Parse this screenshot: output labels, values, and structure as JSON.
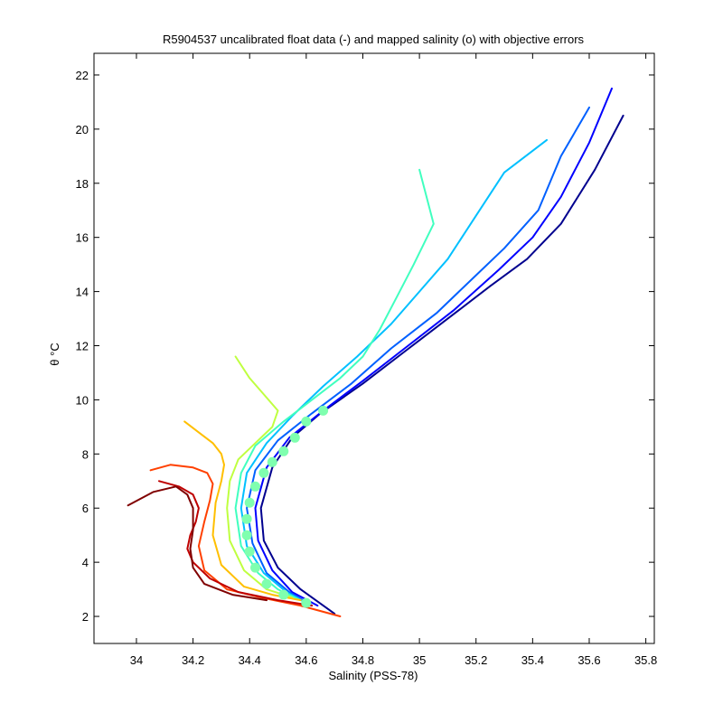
{
  "chart_data": {
    "type": "line",
    "title": "R5904537 uncalibrated float data (-) and mapped salinity (o) with objective errors",
    "xlabel": "Salinity (PSS-78)",
    "ylabel": "θ °C",
    "xlim": [
      33.85,
      35.83
    ],
    "ylim": [
      1.0,
      22.8
    ],
    "x_ticks": [
      34,
      34.2,
      34.4,
      34.6,
      34.8,
      35,
      35.2,
      35.4,
      35.6,
      35.8
    ],
    "x_tick_labels": [
      "34",
      "34.2",
      "34.4",
      "34.6",
      "34.8",
      "35",
      "35.2",
      "35.4",
      "35.6",
      "35.8"
    ],
    "y_ticks": [
      2,
      4,
      6,
      8,
      10,
      12,
      14,
      16,
      18,
      20,
      22
    ],
    "y_tick_labels": [
      "2",
      "4",
      "6",
      "8",
      "10",
      "12",
      "14",
      "16",
      "18",
      "20",
      "22"
    ],
    "grid": false,
    "colormap": "jet",
    "series": [
      {
        "color": "#00008f",
        "x": [
          35.72,
          35.62,
          35.5,
          35.38,
          35.25,
          35.1,
          34.95,
          34.8,
          34.65,
          34.55,
          34.48,
          34.44,
          34.45,
          34.5,
          34.58,
          34.7
        ],
        "y": [
          20.5,
          18.5,
          16.5,
          15.2,
          14.2,
          13.0,
          11.8,
          10.6,
          9.5,
          8.6,
          7.5,
          6.0,
          4.8,
          3.8,
          3.0,
          2.1
        ]
      },
      {
        "color": "#0000ff",
        "x": [
          35.68,
          35.6,
          35.5,
          35.4,
          35.28,
          35.12,
          34.96,
          34.8,
          34.66,
          34.54,
          34.46,
          34.42,
          34.43,
          34.48,
          34.55,
          34.64
        ],
        "y": [
          21.5,
          19.5,
          17.5,
          16.0,
          14.8,
          13.3,
          12.0,
          10.7,
          9.6,
          8.6,
          7.5,
          6.0,
          4.8,
          3.7,
          2.9,
          2.4
        ]
      },
      {
        "color": "#0060ff",
        "x": [
          35.6,
          35.5,
          35.42,
          35.3,
          35.2,
          35.06,
          34.9,
          34.76,
          34.62,
          34.5,
          34.42,
          34.39,
          34.41,
          34.46,
          34.54,
          34.62
        ],
        "y": [
          20.8,
          19.0,
          17.0,
          15.6,
          14.6,
          13.2,
          11.9,
          10.6,
          9.5,
          8.5,
          7.4,
          6.0,
          4.7,
          3.6,
          2.9,
          2.4
        ]
      },
      {
        "color": "#00c0ff",
        "x": [
          35.45,
          35.3,
          35.2,
          35.1,
          35.0,
          34.9,
          34.78,
          34.66,
          34.55,
          34.46,
          34.39,
          34.37,
          34.39,
          34.45,
          34.53,
          34.6
        ],
        "y": [
          19.6,
          18.4,
          16.8,
          15.2,
          14.0,
          12.8,
          11.6,
          10.5,
          9.4,
          8.4,
          7.3,
          6.0,
          4.6,
          3.6,
          2.9,
          2.5
        ]
      },
      {
        "color": "#40ffbf",
        "x": [
          35.0,
          35.05,
          34.98,
          34.92,
          34.86,
          34.8,
          34.72,
          34.62,
          34.52,
          34.42,
          34.37,
          34.35,
          34.37,
          34.43,
          34.5,
          34.58
        ],
        "y": [
          18.5,
          16.5,
          15.0,
          13.8,
          12.6,
          11.6,
          10.8,
          10.0,
          9.2,
          8.3,
          7.3,
          6.0,
          4.6,
          3.6,
          3.0,
          2.6
        ]
      },
      {
        "color": "#bfff40",
        "x": [
          34.35,
          34.4,
          34.45,
          34.5,
          34.48,
          34.42,
          34.36,
          34.33,
          34.32,
          34.33,
          34.38,
          34.46,
          34.55
        ],
        "y": [
          11.6,
          10.8,
          10.2,
          9.6,
          9.0,
          8.4,
          7.8,
          7.0,
          6.0,
          4.8,
          3.7,
          3.0,
          2.7
        ]
      },
      {
        "color": "#ffbf00",
        "x": [
          34.17,
          34.22,
          34.27,
          34.3,
          34.31,
          34.3,
          34.28,
          34.27,
          34.3,
          34.38,
          34.48,
          34.58
        ],
        "y": [
          9.2,
          8.8,
          8.4,
          8.0,
          7.6,
          7.0,
          6.2,
          5.0,
          3.9,
          3.1,
          2.8,
          2.6
        ]
      },
      {
        "color": "#ff4000",
        "x": [
          34.05,
          34.12,
          34.2,
          34.25,
          34.27,
          34.26,
          34.24,
          34.22,
          34.24,
          34.32,
          34.44,
          34.58,
          34.72
        ],
        "y": [
          7.4,
          7.6,
          7.5,
          7.3,
          6.9,
          6.3,
          5.5,
          4.6,
          3.7,
          3.0,
          2.7,
          2.4,
          2.0
        ]
      },
      {
        "color": "#bf0000",
        "x": [
          34.08,
          34.15,
          34.2,
          34.22,
          34.21,
          34.19,
          34.18,
          34.2,
          34.26,
          34.36,
          34.5,
          34.62
        ],
        "y": [
          7.0,
          6.8,
          6.5,
          6.0,
          5.5,
          5.0,
          4.5,
          4.0,
          3.4,
          2.9,
          2.6,
          2.4
        ]
      },
      {
        "color": "#800000",
        "x": [
          33.97,
          34.06,
          34.14,
          34.18,
          34.2,
          34.2,
          34.19,
          34.2,
          34.24,
          34.34,
          34.46
        ],
        "y": [
          6.1,
          6.6,
          6.8,
          6.5,
          6.0,
          5.2,
          4.5,
          3.8,
          3.2,
          2.8,
          2.6
        ]
      }
    ],
    "mapped_points": [
      {
        "x": 34.6,
        "y": 2.5
      },
      {
        "x": 34.52,
        "y": 2.8
      },
      {
        "x": 34.46,
        "y": 3.2
      },
      {
        "x": 34.42,
        "y": 3.8
      },
      {
        "x": 34.4,
        "y": 4.4
      },
      {
        "x": 34.39,
        "y": 5.0
      },
      {
        "x": 34.39,
        "y": 5.6
      },
      {
        "x": 34.4,
        "y": 6.2
      },
      {
        "x": 34.42,
        "y": 6.8
      },
      {
        "x": 34.45,
        "y": 7.3
      },
      {
        "x": 34.48,
        "y": 7.7
      },
      {
        "x": 34.52,
        "y": 8.1
      },
      {
        "x": 34.56,
        "y": 8.6
      },
      {
        "x": 34.6,
        "y": 9.2
      },
      {
        "x": 34.66,
        "y": 9.6
      }
    ],
    "mapped_point_color": "#7fffaf"
  }
}
